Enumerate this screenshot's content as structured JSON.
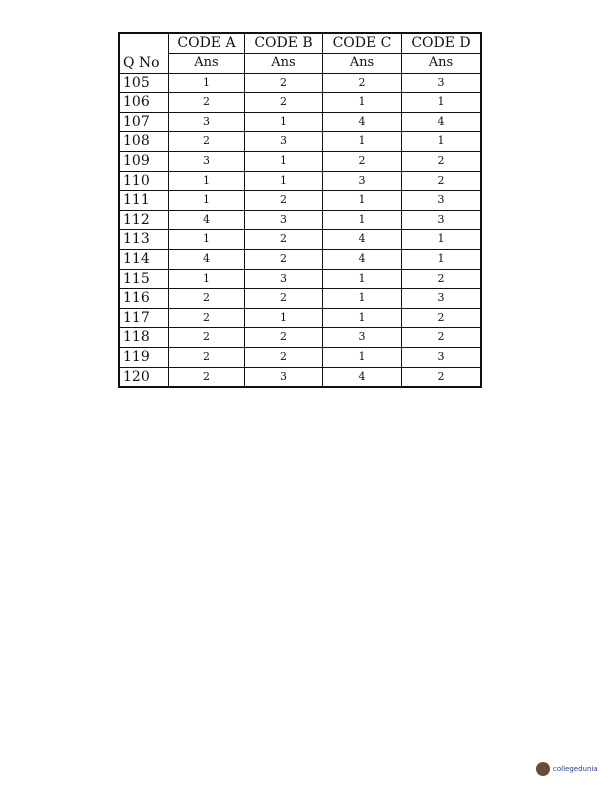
{
  "table": {
    "code_headers": [
      "CODE A",
      "CODE B",
      "CODE C",
      "CODE D"
    ],
    "qno_header": "Q No",
    "ans_header": "Ans",
    "rows": [
      {
        "q": "105",
        "a": [
          "1",
          "2",
          "2",
          "3"
        ]
      },
      {
        "q": "106",
        "a": [
          "2",
          "2",
          "1",
          "1"
        ]
      },
      {
        "q": "107",
        "a": [
          "3",
          "1",
          "4",
          "4"
        ]
      },
      {
        "q": "108",
        "a": [
          "2",
          "3",
          "1",
          "1"
        ]
      },
      {
        "q": "109",
        "a": [
          "3",
          "1",
          "2",
          "2"
        ]
      },
      {
        "q": "110",
        "a": [
          "1",
          "1",
          "3",
          "2"
        ]
      },
      {
        "q": "111",
        "a": [
          "1",
          "2",
          "1",
          "3"
        ]
      },
      {
        "q": "112",
        "a": [
          "4",
          "3",
          "1",
          "3"
        ]
      },
      {
        "q": "113",
        "a": [
          "1",
          "2",
          "4",
          "1"
        ]
      },
      {
        "q": "114",
        "a": [
          "4",
          "2",
          "4",
          "1"
        ]
      },
      {
        "q": "115",
        "a": [
          "1",
          "3",
          "1",
          "2"
        ]
      },
      {
        "q": "116",
        "a": [
          "2",
          "2",
          "1",
          "3"
        ]
      },
      {
        "q": "117",
        "a": [
          "2",
          "1",
          "1",
          "2"
        ]
      },
      {
        "q": "118",
        "a": [
          "2",
          "2",
          "3",
          "2"
        ]
      },
      {
        "q": "119",
        "a": [
          "2",
          "2",
          "1",
          "3"
        ]
      },
      {
        "q": "120",
        "a": [
          "2",
          "3",
          "4",
          "2"
        ]
      }
    ]
  },
  "watermark": {
    "text": "collegedunia"
  }
}
